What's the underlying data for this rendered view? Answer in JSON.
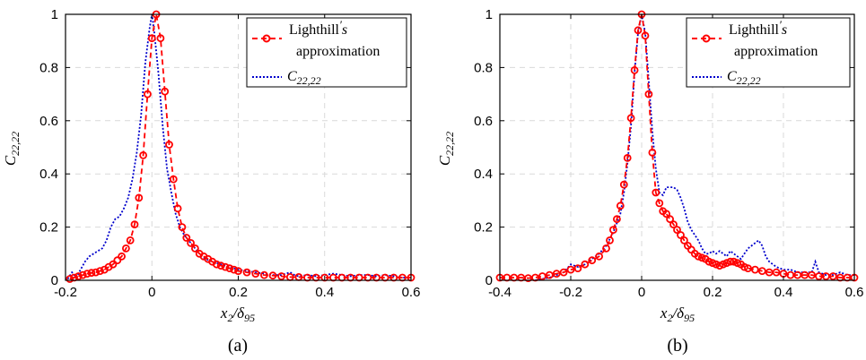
{
  "colors": {
    "lighthill": "#ff0000",
    "c2222": "#0000cc",
    "grid": "#d9d9d9",
    "axis": "#000000"
  },
  "chart_data": [
    {
      "type": "line",
      "panel_label": "(a)",
      "xlabel": "x2/δ95",
      "ylabel": "C22,22",
      "xlim": [
        -0.2,
        0.6
      ],
      "ylim": [
        0,
        1
      ],
      "xticks": [
        "-0.2",
        "0",
        "0.2",
        "0.4",
        "0.6"
      ],
      "yticks": [
        "0",
        "0.2",
        "0.4",
        "0.6",
        "0.8",
        "1"
      ],
      "grid": true,
      "legend_position": "top-right",
      "series": [
        {
          "name": "Lighthill's approximation",
          "style": "dashed-circles",
          "x": [
            -0.19,
            -0.18,
            -0.17,
            -0.16,
            -0.15,
            -0.14,
            -0.13,
            -0.12,
            -0.11,
            -0.1,
            -0.09,
            -0.08,
            -0.07,
            -0.06,
            -0.05,
            -0.04,
            -0.03,
            -0.02,
            -0.01,
            0.0,
            0.01,
            0.02,
            0.03,
            0.04,
            0.05,
            0.06,
            0.07,
            0.08,
            0.09,
            0.1,
            0.11,
            0.12,
            0.13,
            0.14,
            0.15,
            0.16,
            0.17,
            0.18,
            0.19,
            0.2,
            0.22,
            0.24,
            0.26,
            0.28,
            0.3,
            0.32,
            0.34,
            0.36,
            0.38,
            0.4,
            0.42,
            0.44,
            0.46,
            0.48,
            0.5,
            0.52,
            0.54,
            0.56,
            0.58,
            0.6
          ],
          "y": [
            0.005,
            0.01,
            0.015,
            0.02,
            0.025,
            0.028,
            0.03,
            0.035,
            0.04,
            0.05,
            0.06,
            0.075,
            0.09,
            0.12,
            0.15,
            0.21,
            0.31,
            0.47,
            0.7,
            0.91,
            1.0,
            0.91,
            0.71,
            0.51,
            0.38,
            0.27,
            0.2,
            0.16,
            0.14,
            0.12,
            0.1,
            0.09,
            0.08,
            0.07,
            0.06,
            0.055,
            0.05,
            0.045,
            0.04,
            0.035,
            0.03,
            0.025,
            0.02,
            0.018,
            0.015,
            0.012,
            0.012,
            0.01,
            0.01,
            0.01,
            0.01,
            0.01,
            0.01,
            0.01,
            0.01,
            0.01,
            0.01,
            0.01,
            0.01,
            0.01
          ]
        },
        {
          "name": "C22,22",
          "style": "dotted",
          "x": [
            -0.195,
            -0.185,
            -0.175,
            -0.165,
            -0.155,
            -0.145,
            -0.135,
            -0.125,
            -0.115,
            -0.105,
            -0.095,
            -0.085,
            -0.075,
            -0.065,
            -0.055,
            -0.045,
            -0.035,
            -0.025,
            -0.015,
            -0.005,
            0.0,
            0.005,
            0.015,
            0.025,
            0.035,
            0.045,
            0.055,
            0.065,
            0.075,
            0.085,
            0.095,
            0.105,
            0.115,
            0.125,
            0.14,
            0.16,
            0.18,
            0.2,
            0.22,
            0.24,
            0.26,
            0.28,
            0.3,
            0.31,
            0.32,
            0.33,
            0.34,
            0.36,
            0.38,
            0.4,
            0.42,
            0.44,
            0.46,
            0.48,
            0.5,
            0.52,
            0.54,
            0.56,
            0.58,
            0.6
          ],
          "y": [
            0.005,
            0.03,
            0.01,
            0.04,
            0.07,
            0.09,
            0.1,
            0.11,
            0.12,
            0.15,
            0.2,
            0.23,
            0.24,
            0.27,
            0.31,
            0.38,
            0.48,
            0.62,
            0.82,
            0.95,
            1.0,
            0.94,
            0.78,
            0.58,
            0.42,
            0.33,
            0.25,
            0.2,
            0.17,
            0.15,
            0.13,
            0.11,
            0.09,
            0.08,
            0.07,
            0.06,
            0.05,
            0.04,
            0.035,
            0.03,
            0.025,
            0.02,
            0.02,
            0.025,
            0.03,
            0.02,
            0.015,
            0.02,
            0.015,
            0.02,
            0.025,
            0.02,
            0.015,
            0.02,
            0.02,
            0.015,
            0.02,
            0.015,
            0.01,
            0.01
          ]
        }
      ]
    },
    {
      "type": "line",
      "panel_label": "(b)",
      "xlabel": "x2/δ95",
      "ylabel": "C22,22",
      "xlim": [
        -0.4,
        0.6
      ],
      "ylim": [
        0,
        1
      ],
      "xticks": [
        "-0.4",
        "-0.2",
        "0",
        "0.2",
        "0.4",
        "0.6"
      ],
      "yticks": [
        "0",
        "0.2",
        "0.4",
        "0.6",
        "0.8",
        "1"
      ],
      "grid": true,
      "legend_position": "top-right",
      "series": [
        {
          "name": "Lighthill's approximation",
          "style": "dashed-circles",
          "x": [
            -0.4,
            -0.38,
            -0.36,
            -0.34,
            -0.32,
            -0.3,
            -0.28,
            -0.26,
            -0.24,
            -0.22,
            -0.2,
            -0.18,
            -0.16,
            -0.14,
            -0.12,
            -0.1,
            -0.09,
            -0.08,
            -0.07,
            -0.06,
            -0.05,
            -0.04,
            -0.03,
            -0.02,
            -0.01,
            0.0,
            0.01,
            0.02,
            0.03,
            0.04,
            0.05,
            0.06,
            0.07,
            0.08,
            0.09,
            0.1,
            0.11,
            0.12,
            0.13,
            0.14,
            0.15,
            0.16,
            0.17,
            0.18,
            0.19,
            0.2,
            0.21,
            0.22,
            0.23,
            0.24,
            0.25,
            0.26,
            0.27,
            0.28,
            0.29,
            0.3,
            0.32,
            0.34,
            0.36,
            0.38,
            0.4,
            0.42,
            0.44,
            0.46,
            0.48,
            0.5,
            0.52,
            0.54,
            0.56,
            0.58,
            0.6
          ],
          "y": [
            0.01,
            0.01,
            0.01,
            0.01,
            0.008,
            0.01,
            0.015,
            0.02,
            0.025,
            0.03,
            0.04,
            0.045,
            0.06,
            0.075,
            0.09,
            0.12,
            0.15,
            0.19,
            0.23,
            0.28,
            0.36,
            0.46,
            0.61,
            0.79,
            0.94,
            1.0,
            0.92,
            0.7,
            0.48,
            0.33,
            0.29,
            0.26,
            0.25,
            0.23,
            0.21,
            0.19,
            0.17,
            0.15,
            0.13,
            0.115,
            0.1,
            0.09,
            0.085,
            0.08,
            0.07,
            0.065,
            0.06,
            0.055,
            0.06,
            0.065,
            0.07,
            0.07,
            0.065,
            0.06,
            0.05,
            0.045,
            0.04,
            0.035,
            0.03,
            0.03,
            0.025,
            0.02,
            0.02,
            0.02,
            0.02,
            0.015,
            0.015,
            0.015,
            0.01,
            0.01,
            0.01
          ]
        },
        {
          "name": "C22,22",
          "style": "dotted",
          "x": [
            -0.3,
            -0.28,
            -0.26,
            -0.24,
            -0.22,
            -0.2,
            -0.18,
            -0.16,
            -0.14,
            -0.12,
            -0.1,
            -0.08,
            -0.06,
            -0.05,
            -0.04,
            -0.03,
            -0.02,
            -0.01,
            0.0,
            0.01,
            0.02,
            0.03,
            0.04,
            0.05,
            0.06,
            0.07,
            0.08,
            0.09,
            0.1,
            0.11,
            0.12,
            0.13,
            0.14,
            0.15,
            0.16,
            0.17,
            0.18,
            0.19,
            0.2,
            0.21,
            0.22,
            0.23,
            0.24,
            0.25,
            0.26,
            0.27,
            0.28,
            0.29,
            0.3,
            0.31,
            0.32,
            0.33,
            0.34,
            0.35,
            0.36,
            0.37,
            0.38,
            0.4,
            0.42,
            0.44,
            0.46,
            0.48,
            0.49,
            0.5,
            0.52,
            0.54,
            0.56,
            0.58,
            0.6
          ],
          "y": [
            0.0,
            0.005,
            0.01,
            0.02,
            0.03,
            0.06,
            0.05,
            0.06,
            0.08,
            0.1,
            0.13,
            0.18,
            0.25,
            0.33,
            0.44,
            0.58,
            0.78,
            0.93,
            1.0,
            0.93,
            0.75,
            0.56,
            0.42,
            0.33,
            0.32,
            0.35,
            0.35,
            0.35,
            0.34,
            0.31,
            0.27,
            0.22,
            0.19,
            0.17,
            0.15,
            0.12,
            0.1,
            0.1,
            0.11,
            0.1,
            0.11,
            0.1,
            0.09,
            0.11,
            0.1,
            0.09,
            0.08,
            0.1,
            0.12,
            0.13,
            0.14,
            0.15,
            0.13,
            0.09,
            0.07,
            0.06,
            0.05,
            0.04,
            0.04,
            0.03,
            0.03,
            0.03,
            0.07,
            0.03,
            0.02,
            0.02,
            0.03,
            0.02,
            0.02
          ]
        }
      ]
    }
  ]
}
